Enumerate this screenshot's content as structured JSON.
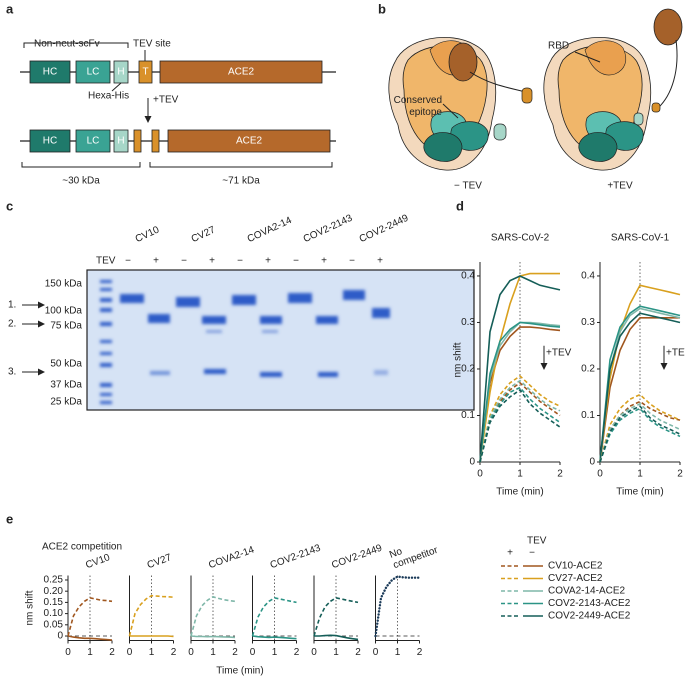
{
  "panel_labels": [
    "a",
    "b",
    "c",
    "d",
    "e"
  ],
  "panel_a": {
    "scfv": "Non-neut-scFv",
    "tev_site": "TEV site",
    "hc": "HC",
    "lc": "LC",
    "h": "H",
    "t": "T",
    "ace2": "ACE2",
    "hexa_his": "Hexa-His",
    "plus_tev": "+TEV",
    "kda_30": "~30 kDa",
    "kda_71": "~71 kDa"
  },
  "panel_b": {
    "rbd": "RBD",
    "epitope": [
      "Conserved",
      "epitope"
    ],
    "minus_tev": "− TEV",
    "plus_tev": "+TEV"
  },
  "panel_c": {
    "tev_label": "TEV",
    "lanes": [
      {
        "name": "CV10",
        "tev": [
          "−",
          "+"
        ]
      },
      {
        "name": "CV27",
        "tev": [
          "−",
          "+"
        ]
      },
      {
        "name": "COVA2-14",
        "tev": [
          "−",
          "+"
        ]
      },
      {
        "name": "COV2-2143",
        "tev": [
          "−",
          "+"
        ]
      },
      {
        "name": "COV2-2449",
        "tev": [
          "−",
          "+"
        ]
      }
    ],
    "ladder": [
      "150 kDa",
      "100 kDa",
      "75 kDa",
      "50 kDa",
      "37 kDa",
      "25 kDa"
    ],
    "arrows": [
      "1.",
      "2.",
      "3."
    ]
  },
  "panel_e_title": "ACE2 competition",
  "legend": {
    "title": "TEV",
    "columns": [
      "+",
      "−"
    ],
    "entries": [
      {
        "name": "CV10-ACE2",
        "color": "#a0561e"
      },
      {
        "name": "CV27-ACE2",
        "color": "#d9a01e"
      },
      {
        "name": "COVA2-14-ACE2",
        "color": "#7fb7a9"
      },
      {
        "name": "COV2-2143-ACE2",
        "color": "#2b9486"
      },
      {
        "name": "COV2-2449-ACE2",
        "color": "#155e58"
      }
    ]
  },
  "chart_data": [
    {
      "type": "line",
      "title": "SARS-CoV-2",
      "ylabel": "nm shift",
      "xlabel": "Time (min)",
      "annotation": "+TEV",
      "x": [
        0,
        0.25,
        0.5,
        0.75,
        1,
        1.25,
        1.5,
        1.75,
        2
      ],
      "xlim": [
        0,
        2
      ],
      "xticks": [
        0,
        1,
        2
      ],
      "ylim": [
        0,
        0.43
      ],
      "yticks": [
        0,
        0.1,
        0.2,
        0.3,
        0.4
      ],
      "vline": 1,
      "series": [
        {
          "color": "#a0561e",
          "dash": false,
          "values": [
            0,
            0.17,
            0.24,
            0.27,
            0.29,
            0.29,
            0.288,
            0.285,
            0.283
          ]
        },
        {
          "color": "#d9a01e",
          "dash": false,
          "values": [
            0,
            0.15,
            0.26,
            0.34,
            0.4,
            0.405,
            0.405,
            0.405,
            0.405
          ]
        },
        {
          "color": "#7fb7a9",
          "dash": false,
          "values": [
            0,
            0.18,
            0.25,
            0.28,
            0.3,
            0.3,
            0.298,
            0.295,
            0.293
          ]
        },
        {
          "color": "#2b9486",
          "dash": false,
          "values": [
            0,
            0.19,
            0.26,
            0.285,
            0.3,
            0.298,
            0.295,
            0.292,
            0.29
          ]
        },
        {
          "color": "#155e58",
          "dash": false,
          "values": [
            0,
            0.28,
            0.36,
            0.39,
            0.4,
            0.39,
            0.38,
            0.375,
            0.37
          ]
        },
        {
          "color": "#a0561e",
          "dash": true,
          "values": [
            0,
            0.09,
            0.13,
            0.155,
            0.17,
            0.15,
            0.13,
            0.115,
            0.1
          ]
        },
        {
          "color": "#d9a01e",
          "dash": true,
          "values": [
            0,
            0.1,
            0.145,
            0.17,
            0.185,
            0.165,
            0.145,
            0.13,
            0.12
          ]
        },
        {
          "color": "#7fb7a9",
          "dash": true,
          "values": [
            0,
            0.095,
            0.135,
            0.16,
            0.175,
            0.155,
            0.135,
            0.12,
            0.11
          ]
        },
        {
          "color": "#2b9486",
          "dash": true,
          "values": [
            0,
            0.09,
            0.125,
            0.15,
            0.16,
            0.135,
            0.115,
            0.1,
            0.085
          ]
        },
        {
          "color": "#155e58",
          "dash": true,
          "values": [
            0,
            0.085,
            0.12,
            0.14,
            0.155,
            0.125,
            0.105,
            0.09,
            0.075
          ]
        }
      ]
    },
    {
      "type": "line",
      "title": "SARS-CoV-1",
      "xlabel": "Time (min)",
      "annotation": "+TEV",
      "x": [
        0,
        0.25,
        0.5,
        0.75,
        1,
        1.25,
        1.5,
        1.75,
        2
      ],
      "xlim": [
        0,
        2
      ],
      "xticks": [
        0,
        1,
        2
      ],
      "ylim": [
        0,
        0.43
      ],
      "yticks": [
        0,
        0.1,
        0.2,
        0.3,
        0.4
      ],
      "vline": 1,
      "series": [
        {
          "color": "#a0561e",
          "dash": false,
          "values": [
            0,
            0.16,
            0.24,
            0.285,
            0.31,
            0.31,
            0.31,
            0.31,
            0.31
          ]
        },
        {
          "color": "#d9a01e",
          "dash": false,
          "values": [
            0,
            0.18,
            0.28,
            0.34,
            0.38,
            0.375,
            0.37,
            0.365,
            0.36
          ]
        },
        {
          "color": "#7fb7a9",
          "dash": false,
          "values": [
            0,
            0.2,
            0.28,
            0.315,
            0.33,
            0.325,
            0.32,
            0.315,
            0.31
          ]
        },
        {
          "color": "#2b9486",
          "dash": false,
          "values": [
            0,
            0.22,
            0.29,
            0.32,
            0.335,
            0.33,
            0.325,
            0.32,
            0.315
          ]
        },
        {
          "color": "#155e58",
          "dash": false,
          "values": [
            0,
            0.2,
            0.27,
            0.3,
            0.32,
            0.315,
            0.31,
            0.305,
            0.3
          ]
        },
        {
          "color": "#a0561e",
          "dash": true,
          "values": [
            0,
            0.07,
            0.1,
            0.12,
            0.13,
            0.115,
            0.105,
            0.095,
            0.09
          ]
        },
        {
          "color": "#d9a01e",
          "dash": true,
          "values": [
            0,
            0.08,
            0.115,
            0.135,
            0.145,
            0.125,
            0.11,
            0.1,
            0.09
          ]
        },
        {
          "color": "#7fb7a9",
          "dash": true,
          "values": [
            0,
            0.07,
            0.1,
            0.115,
            0.125,
            0.105,
            0.09,
            0.08,
            0.07
          ]
        },
        {
          "color": "#2b9486",
          "dash": true,
          "values": [
            0,
            0.06,
            0.09,
            0.105,
            0.115,
            0.09,
            0.075,
            0.065,
            0.055
          ]
        },
        {
          "color": "#155e58",
          "dash": true,
          "values": [
            0,
            0.065,
            0.095,
            0.11,
            0.12,
            0.095,
            0.08,
            0.07,
            0.06
          ]
        }
      ]
    },
    {
      "type": "line",
      "title": [
        "CV10"
      ],
      "ylabel": "nm shift",
      "x": [
        0,
        0.25,
        0.5,
        0.75,
        1,
        1.25,
        1.5,
        1.75,
        2
      ],
      "xlim": [
        0,
        2
      ],
      "xticks": [
        0,
        1,
        2
      ],
      "ylim": [
        -0.02,
        0.27
      ],
      "yticks": [
        0,
        0.05,
        {
          "value": 0.1,
          "label": "0.10"
        },
        0.15,
        {
          "value": 0.2,
          "label": "0.20"
        },
        0.25
      ],
      "vline": 1,
      "hline": 0,
      "series": [
        {
          "color": "#a0561e",
          "dash": true,
          "values": [
            0,
            0.09,
            0.13,
            0.155,
            0.17,
            0.165,
            0.16,
            0.158,
            0.155
          ]
        },
        {
          "color": "#a0561e",
          "dash": false,
          "values": [
            0,
            -0.005,
            -0.008,
            -0.01,
            -0.01,
            -0.012,
            -0.014,
            -0.016,
            -0.018
          ]
        }
      ]
    },
    {
      "type": "line",
      "title": [
        "CV27"
      ],
      "x": [
        0,
        0.25,
        0.5,
        0.75,
        1,
        1.25,
        1.5,
        1.75,
        2
      ],
      "xlim": [
        0,
        2
      ],
      "xticks": [
        0,
        1,
        2
      ],
      "ylim": [
        -0.02,
        0.27
      ],
      "vline": 1,
      "hline": 0,
      "series": [
        {
          "color": "#d9a01e",
          "dash": true,
          "values": [
            0,
            0.1,
            0.14,
            0.165,
            0.18,
            0.178,
            0.176,
            0.175,
            0.173
          ]
        },
        {
          "color": "#d9a01e",
          "dash": false,
          "values": [
            0,
            0,
            0,
            0,
            0,
            0,
            0,
            0,
            -0.002
          ]
        }
      ]
    },
    {
      "type": "line",
      "title": [
        "COVA2-14"
      ],
      "x": [
        0,
        0.25,
        0.5,
        0.75,
        1,
        1.25,
        1.5,
        1.75,
        2
      ],
      "xlim": [
        0,
        2
      ],
      "xticks": [
        0,
        1,
        2
      ],
      "ylim": [
        -0.02,
        0.27
      ],
      "vline": 1,
      "hline": 0,
      "series": [
        {
          "color": "#7fb7a9",
          "dash": true,
          "values": [
            0,
            0.09,
            0.135,
            0.16,
            0.175,
            0.168,
            0.162,
            0.158,
            0.155
          ]
        },
        {
          "color": "#7fb7a9",
          "dash": false,
          "values": [
            0,
            -0.002,
            -0.002,
            -0.003,
            -0.002,
            -0.003,
            -0.004,
            -0.005,
            -0.006
          ]
        }
      ]
    },
    {
      "type": "line",
      "title": [
        "COV2-2143"
      ],
      "xlabel": "Time (min)",
      "x": [
        0,
        0.25,
        0.5,
        0.75,
        1,
        1.25,
        1.5,
        1.75,
        2
      ],
      "xlim": [
        0,
        2
      ],
      "xticks": [
        0,
        1,
        2
      ],
      "ylim": [
        -0.02,
        0.27
      ],
      "vline": 1,
      "hline": 0,
      "series": [
        {
          "color": "#2b9486",
          "dash": true,
          "values": [
            0,
            0.085,
            0.13,
            0.155,
            0.17,
            0.165,
            0.16,
            0.155,
            0.15
          ]
        },
        {
          "color": "#2b9486",
          "dash": false,
          "values": [
            0,
            -0.003,
            -0.005,
            -0.006,
            -0.005,
            -0.006,
            -0.008,
            -0.01,
            -0.012
          ]
        }
      ]
    },
    {
      "type": "line",
      "title": [
        "COV2-2449"
      ],
      "x": [
        0,
        0.25,
        0.5,
        0.75,
        1,
        1.25,
        1.5,
        1.75,
        2
      ],
      "xlim": [
        0,
        2
      ],
      "xticks": [
        0,
        1,
        2
      ],
      "ylim": [
        -0.02,
        0.27
      ],
      "vline": 1,
      "hline": 0,
      "series": [
        {
          "color": "#155e58",
          "dash": true,
          "values": [
            0,
            0.08,
            0.13,
            0.155,
            0.17,
            0.165,
            0.16,
            0.155,
            0.15
          ]
        },
        {
          "color": "#155e58",
          "dash": false,
          "values": [
            0,
            0,
            0.002,
            0.003,
            0.002,
            -0.003,
            -0.008,
            -0.012,
            -0.015
          ]
        }
      ]
    },
    {
      "type": "line",
      "title": [
        "No",
        "competitor"
      ],
      "x": [
        0,
        0.25,
        0.5,
        0.75,
        1,
        1.25,
        1.5,
        1.75,
        2
      ],
      "xlim": [
        0,
        2
      ],
      "xticks": [
        0,
        1,
        2
      ],
      "ylim": [
        -0.02,
        0.27
      ],
      "vline": 1,
      "hline": 0,
      "series": [
        {
          "color": "#1d3c5a",
          "dash": "dot",
          "values": [
            0,
            0.17,
            0.22,
            0.25,
            0.265,
            0.262,
            0.26,
            0.26,
            0.26
          ]
        }
      ]
    }
  ]
}
